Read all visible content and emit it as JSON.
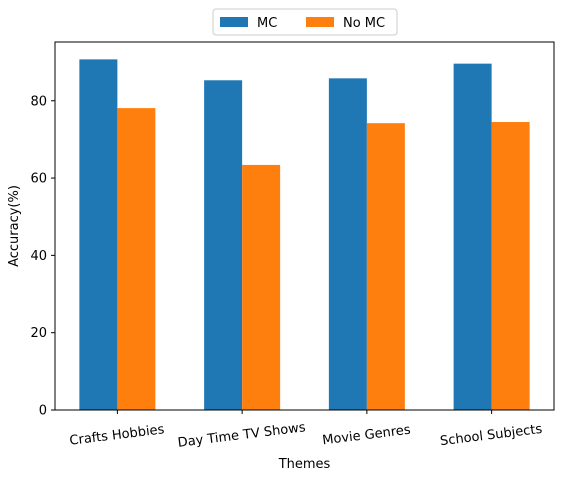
{
  "chart_data": {
    "type": "bar",
    "title": "",
    "xlabel": "Themes",
    "ylabel": "Accuracy(%)",
    "categories": [
      "Crafts Hobbies",
      "Day Time TV Shows",
      "Movie Genres",
      "School Subjects"
    ],
    "series": [
      {
        "name": "MC",
        "color": "#1f77b4",
        "values": [
          90.7,
          85.3,
          85.8,
          89.6
        ]
      },
      {
        "name": "No MC",
        "color": "#ff7f0e",
        "values": [
          78.1,
          63.4,
          74.2,
          74.5
        ]
      }
    ],
    "ylim": [
      0,
      95.2
    ],
    "yticks": [
      0,
      20,
      40,
      60,
      80
    ],
    "grid": false,
    "legend_position": "top-center"
  }
}
